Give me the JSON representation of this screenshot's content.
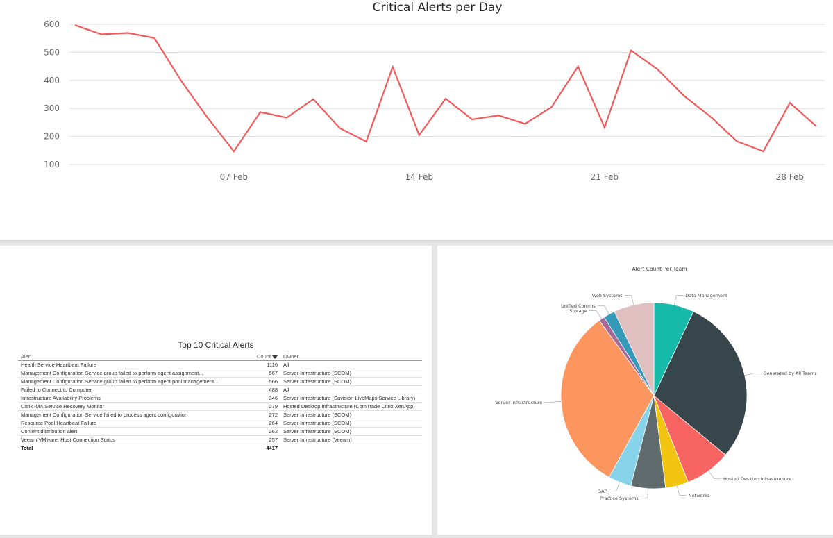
{
  "chart_data": [
    {
      "type": "line",
      "title": "Critical Alerts per Day",
      "xlabel": "",
      "ylabel": "",
      "x_tick_labels": [
        "07 Feb",
        "14 Feb",
        "21 Feb",
        "28 Feb"
      ],
      "y_ticks": [
        100,
        200,
        300,
        400,
        500,
        600
      ],
      "ylim": [
        100,
        600
      ],
      "grid": true,
      "color": "#f05a5a",
      "series": [
        {
          "values": [
            597,
            564,
            569,
            551,
            400,
            268,
            147,
            287,
            267,
            333,
            230,
            182,
            448,
            205,
            335,
            261,
            275,
            245,
            305,
            450,
            232,
            507,
            440,
            345,
            271,
            183,
            147,
            320,
            236
          ]
        }
      ]
    },
    {
      "type": "table",
      "title": "Top 10 Critical Alerts",
      "columns": [
        "Alert",
        "Count",
        "Owner"
      ],
      "rows": [
        [
          "Health Service Heartbeat Failure",
          "1116",
          "All"
        ],
        [
          "Management Configuration Service group failed to perform agent assignment...",
          "567",
          "Server Infrastructure (SCOM)"
        ],
        [
          "Management Configuration Service group failed to perform agent pool management...",
          "566",
          "Server Infrastructure (SCOM)"
        ],
        [
          "Failed to Connect to Computer",
          "488",
          "All"
        ],
        [
          "Infrastructure Availability Problems",
          "346",
          "Server Infrastructure (Savision LiveMaps Service Library)"
        ],
        [
          "Citrix IMA Service Recovery Monitor",
          "279",
          "Hosted Desktop Infrastructure (ComTrade Citrix XenApp)"
        ],
        [
          "Management Configuration Service failed to process agent configuration",
          "272",
          "Server Infrastructure (SCOM)"
        ],
        [
          "Resource Pool Heartbeat Failure",
          "264",
          "Server Infrastructure (SCOM)"
        ],
        [
          "Content distribution alert",
          "262",
          "Server Infrastructure (SCOM)"
        ],
        [
          "Veeam VMware: Host Connection Status",
          "257",
          "Server Infrastructure (Veeam)"
        ]
      ],
      "total_label": "Total",
      "total_value": "4417",
      "sort_icon": "sort-descending-icon"
    },
    {
      "type": "pie",
      "title": "Alert Count Per Team",
      "slices": [
        {
          "label": "Data Management",
          "value": 7,
          "color": "#17b9a8"
        },
        {
          "label": "Generated by All Teams",
          "value": 29,
          "color": "#37464b"
        },
        {
          "label": "Hosted Desktop Infrastructure",
          "value": 8,
          "color": "#f86461"
        },
        {
          "label": "Networks",
          "value": 4,
          "color": "#f2c511"
        },
        {
          "label": "Practice Systems",
          "value": 6,
          "color": "#5f6b6d"
        },
        {
          "label": "SAP",
          "value": 4,
          "color": "#87d3ea"
        },
        {
          "label": "Server Infrastructure",
          "value": 32,
          "color": "#fd955f"
        },
        {
          "label": "Storage",
          "value": 1,
          "color": "#a66999"
        },
        {
          "label": "Unified Comms",
          "value": 2,
          "color": "#3599b8"
        },
        {
          "label": "Web Systems",
          "value": 7,
          "color": "#dfbfbf"
        }
      ]
    }
  ]
}
